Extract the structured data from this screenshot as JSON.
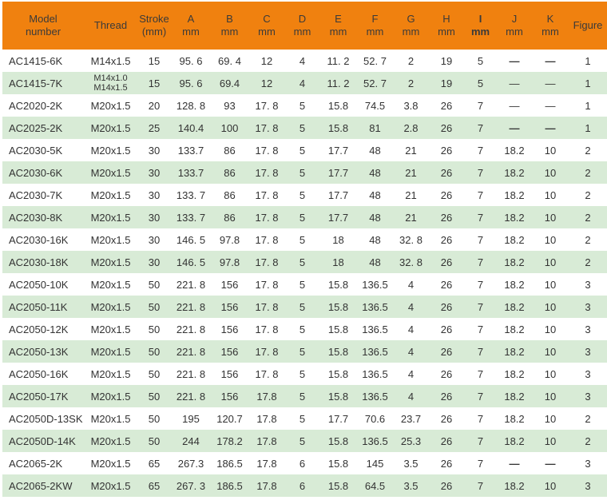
{
  "colors": {
    "header_bg": "#f0810f",
    "header_fg": "#3a3a3a",
    "row_bg": "#ffffff",
    "row_alt_bg": "#d8ebd6",
    "body_fg": "#333333"
  },
  "table": {
    "columns": [
      {
        "key": "model",
        "line1": "Model",
        "line2": "number"
      },
      {
        "key": "thread",
        "line1": "Thread",
        "line2": ""
      },
      {
        "key": "stroke",
        "line1": "Stroke",
        "line2": "(mm)"
      },
      {
        "key": "A",
        "line1": "A",
        "line2": "mm"
      },
      {
        "key": "B",
        "line1": "B",
        "line2": "mm"
      },
      {
        "key": "C",
        "line1": "C",
        "line2": "mm"
      },
      {
        "key": "D",
        "line1": "D",
        "line2": "mm"
      },
      {
        "key": "E",
        "line1": "E",
        "line2": "mm"
      },
      {
        "key": "F",
        "line1": "F",
        "line2": "mm"
      },
      {
        "key": "G",
        "line1": "G",
        "line2": "mm"
      },
      {
        "key": "H",
        "line1": "H",
        "line2": "mm"
      },
      {
        "key": "I",
        "line1": "I",
        "line2": "mm",
        "bold": true
      },
      {
        "key": "J",
        "line1": "J",
        "line2": "mm"
      },
      {
        "key": "K",
        "line1": "K",
        "line2": "mm"
      },
      {
        "key": "figure",
        "line1": "Figure",
        "line2": ""
      }
    ],
    "rows": [
      {
        "model": "AC1415-6K",
        "thread": "M14x1.5",
        "stroke": "15",
        "A": "95. 6",
        "B": "69. 4",
        "C": "12",
        "D": "4",
        "E": "11. 2",
        "F": "52. 7",
        "G": "2",
        "H": "19",
        "I": "5",
        "J": "—",
        "K": "—",
        "figure": "1",
        "heavy_dash": true
      },
      {
        "model": "AC1415-7K",
        "thread": "M14x1.0\nM14x1.5",
        "stroke": "15",
        "A": "95. 6",
        "B": "69.4",
        "C": "12",
        "D": "4",
        "E": "11. 2",
        "F": "52. 7",
        "G": "2",
        "H": "19",
        "I": "5",
        "J": "—",
        "K": "—",
        "figure": "1"
      },
      {
        "model": "AC2020-2K",
        "thread": "M20x1.5",
        "stroke": "20",
        "A": "128. 8",
        "B": "93",
        "C": "17. 8",
        "D": "5",
        "E": "15.8",
        "F": "74.5",
        "G": "3.8",
        "H": "26",
        "I": "7",
        "J": "—",
        "K": "—",
        "figure": "1"
      },
      {
        "model": "AC2025-2K",
        "thread": "M20x1.5",
        "stroke": "25",
        "A": "140.4",
        "B": "100",
        "C": "17. 8",
        "D": "5",
        "E": "15.8",
        "F": "81",
        "G": "2.8",
        "H": "26",
        "I": "7",
        "J": "—",
        "K": "—",
        "figure": "1",
        "heavy_dash": true
      },
      {
        "model": "AC2030-5K",
        "thread": "M20x1.5",
        "stroke": "30",
        "A": "133.7",
        "B": "86",
        "C": "17. 8",
        "D": "5",
        "E": "17.7",
        "F": "48",
        "G": "21",
        "H": "26",
        "I": "7",
        "J": "18.2",
        "K": "10",
        "figure": "2"
      },
      {
        "model": "AC2030-6K",
        "thread": "M20x1.5",
        "stroke": "30",
        "A": "133.7",
        "B": "86",
        "C": "17. 8",
        "D": "5",
        "E": "17.7",
        "F": "48",
        "G": "21",
        "H": "26",
        "I": "7",
        "J": "18.2",
        "K": "10",
        "figure": "2"
      },
      {
        "model": "AC2030-7K",
        "thread": "M20x1.5",
        "stroke": "30",
        "A": "133. 7",
        "B": "86",
        "C": "17. 8",
        "D": "5",
        "E": "17.7",
        "F": "48",
        "G": "21",
        "H": "26",
        "I": "7",
        "J": "18.2",
        "K": "10",
        "figure": "2"
      },
      {
        "model": "AC2030-8K",
        "thread": "M20x1.5",
        "stroke": "30",
        "A": "133. 7",
        "B": "86",
        "C": "17. 8",
        "D": "5",
        "E": "17.7",
        "F": "48",
        "G": "21",
        "H": "26",
        "I": "7",
        "J": "18.2",
        "K": "10",
        "figure": "2"
      },
      {
        "model": "AC2030-16K",
        "thread": "M20x1.5",
        "stroke": "30",
        "A": "146. 5",
        "B": "97.8",
        "C": "17. 8",
        "D": "5",
        "E": "18",
        "F": "48",
        "G": "32. 8",
        "H": "26",
        "I": "7",
        "J": "18.2",
        "K": "10",
        "figure": "2"
      },
      {
        "model": "AC2030-18K",
        "thread": "M20x1.5",
        "stroke": "30",
        "A": "146. 5",
        "B": "97.8",
        "C": "17. 8",
        "D": "5",
        "E": "18",
        "F": "48",
        "G": "32. 8",
        "H": "26",
        "I": "7",
        "J": "18.2",
        "K": "10",
        "figure": "2"
      },
      {
        "model": "AC2050-10K",
        "thread": "M20x1.5",
        "stroke": "50",
        "A": "221. 8",
        "B": "156",
        "C": "17. 8",
        "D": "5",
        "E": "15.8",
        "F": "136.5",
        "G": "4",
        "H": "26",
        "I": "7",
        "J": "18.2",
        "K": "10",
        "figure": "3"
      },
      {
        "model": "AC2050-11K",
        "thread": "M20x1.5",
        "stroke": "50",
        "A": "221. 8",
        "B": "156",
        "C": "17. 8",
        "D": "5",
        "E": "15.8",
        "F": "136.5",
        "G": "4",
        "H": "26",
        "I": "7",
        "J": "18.2",
        "K": "10",
        "figure": "3"
      },
      {
        "model": "AC2050-12K",
        "thread": "M20x1.5",
        "stroke": "50",
        "A": "221. 8",
        "B": "156",
        "C": "17. 8",
        "D": "5",
        "E": "15.8",
        "F": "136.5",
        "G": "4",
        "H": "26",
        "I": "7",
        "J": "18.2",
        "K": "10",
        "figure": "3"
      },
      {
        "model": "AC2050-13K",
        "thread": "M20x1.5",
        "stroke": "50",
        "A": "221. 8",
        "B": "156",
        "C": "17. 8",
        "D": "5",
        "E": "15.8",
        "F": "136.5",
        "G": "4",
        "H": "26",
        "I": "7",
        "J": "18.2",
        "K": "10",
        "figure": "3"
      },
      {
        "model": "AC2050-16K",
        "thread": "M20x1.5",
        "stroke": "50",
        "A": "221. 8",
        "B": "156",
        "C": "17. 8",
        "D": "5",
        "E": "15.8",
        "F": "136.5",
        "G": "4",
        "H": "26",
        "I": "7",
        "J": "18.2",
        "K": "10",
        "figure": "3"
      },
      {
        "model": "AC2050-17K",
        "thread": "M20x1.5",
        "stroke": "50",
        "A": "221. 8",
        "B": "156",
        "C": "17.8",
        "D": "5",
        "E": "15.8",
        "F": "136.5",
        "G": "4",
        "H": "26",
        "I": "7",
        "J": "18.2",
        "K": "10",
        "figure": "3"
      },
      {
        "model": "AC2050D-13SK",
        "thread": "M20x1.5",
        "stroke": "50",
        "A": "195",
        "B": "120.7",
        "C": "17.8",
        "D": "5",
        "E": "17.7",
        "F": "70.6",
        "G": "23.7",
        "H": "26",
        "I": "7",
        "J": "18.2",
        "K": "10",
        "figure": "2"
      },
      {
        "model": "AC2050D-14K",
        "thread": "M20x1.5",
        "stroke": "50",
        "A": "244",
        "B": "178.2",
        "C": "17.8",
        "D": "5",
        "E": "15.8",
        "F": "136.5",
        "G": "25.3",
        "H": "26",
        "I": "7",
        "J": "18.2",
        "K": "10",
        "figure": "2"
      },
      {
        "model": "AC2065-2K",
        "thread": "M20x1.5",
        "stroke": "65",
        "A": "267.3",
        "B": "186.5",
        "C": "17.8",
        "D": "6",
        "E": "15.8",
        "F": "145",
        "G": "3.5",
        "H": "26",
        "I": "7",
        "J": "—",
        "K": "—",
        "figure": "3",
        "heavy_dash": true
      },
      {
        "model": "AC2065-2KW",
        "thread": "M20x1.5",
        "stroke": "65",
        "A": "267. 3",
        "B": "186.5",
        "C": "17.8",
        "D": "6",
        "E": "15.8",
        "F": "64.5",
        "G": "3.5",
        "H": "26",
        "I": "7",
        "J": "18.2",
        "K": "10",
        "figure": "3"
      }
    ]
  }
}
